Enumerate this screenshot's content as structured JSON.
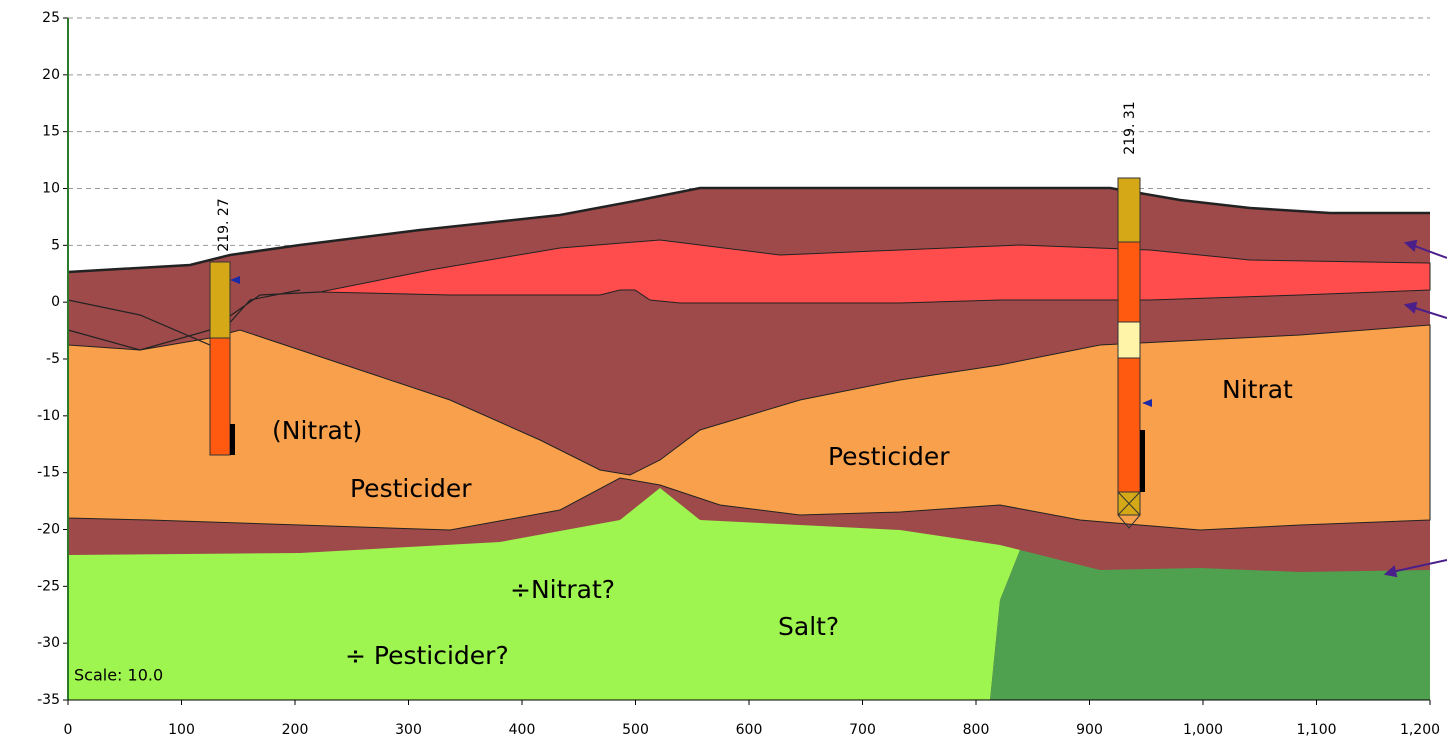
{
  "axes": {
    "xlim": [
      0,
      1200
    ],
    "ylim": [
      -35,
      25
    ],
    "xticks": [
      0,
      100,
      200,
      300,
      400,
      500,
      600,
      700,
      800,
      900,
      {
        "value": 1000,
        "label": "1,000"
      },
      {
        "value": 1100,
        "label": "1,100"
      },
      {
        "value": 1200,
        "label": "1,200"
      }
    ],
    "yticks": [
      -35,
      -30,
      -25,
      -20,
      -15,
      -10,
      -5,
      0,
      5,
      10,
      15,
      20,
      25
    ],
    "grid": true
  },
  "wells": [
    {
      "label": "219. 27"
    },
    {
      "label": "219. 31"
    }
  ],
  "annotations": [
    "(Nitrat)",
    "Pesticider",
    "Pesticider",
    "Nitrat",
    "÷Nitrat?",
    "Salt?",
    "÷ Pesticider?"
  ],
  "scale_label": "Scale: 10.0"
}
